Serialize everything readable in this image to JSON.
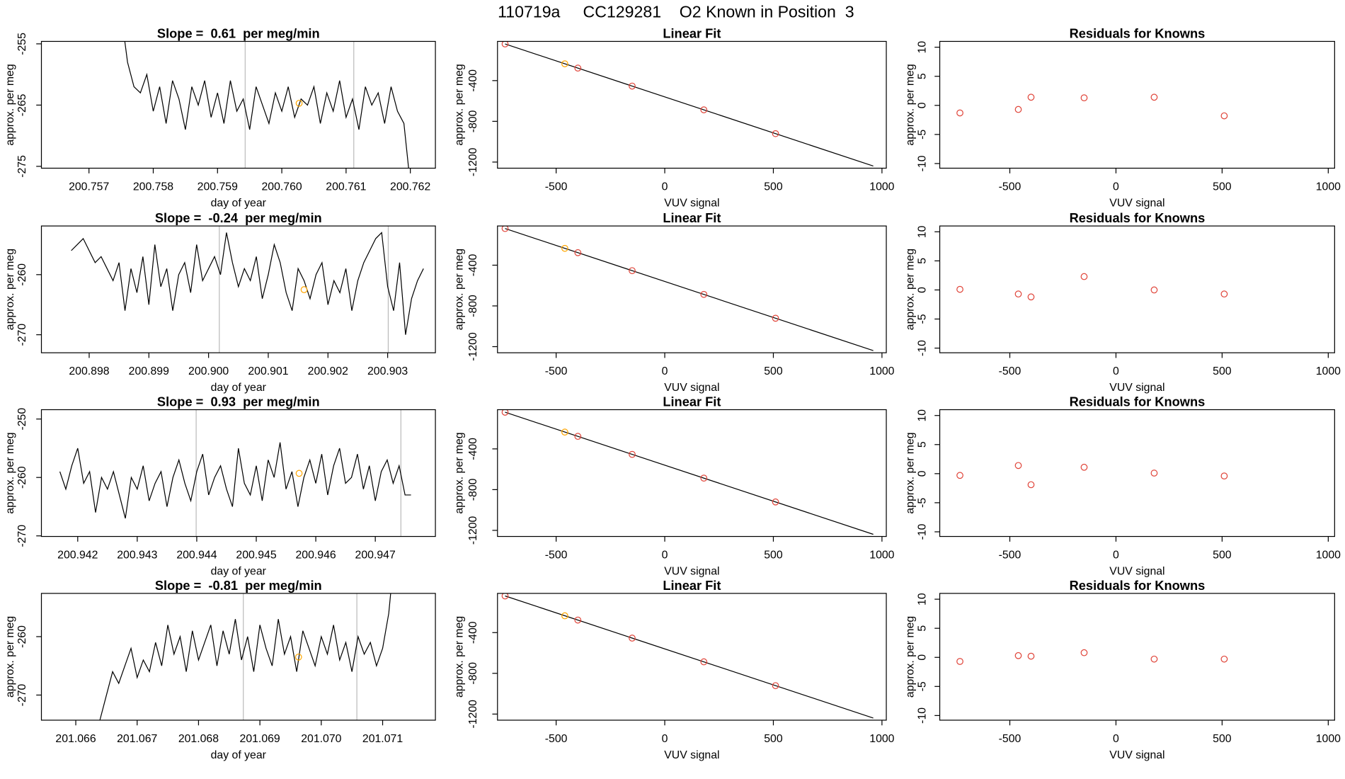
{
  "title": "110719a     CC129281    O2 Known in Position  3",
  "chart_data": [
    {
      "type": "line",
      "title": "Slope =  0.61  per meg/min",
      "xlabel": "day of year",
      "ylabel": "approx. per meg",
      "xlim": [
        200.75626,
        200.76239
      ],
      "xticks": [
        200.757,
        200.758,
        200.759,
        {
          "value": 200.76,
          "label": "200.760"
        },
        200.761,
        200.762
      ],
      "ylim": [
        -275.3,
        -254.6
      ],
      "yticks": [
        -255,
        -265,
        -275
      ],
      "series": [
        {
          "color": "#000000",
          "x": [
            200.7575,
            200.7576,
            200.7577,
            200.7578,
            200.7579,
            200.758,
            200.7581,
            200.7582,
            200.7583,
            200.7584,
            200.7585,
            200.7586,
            200.7587,
            200.7588,
            200.7589,
            200.759,
            200.7591,
            200.7592,
            200.7593,
            200.7594,
            200.7595,
            200.7596,
            200.7597,
            200.7598,
            200.7599,
            200.76,
            200.7601,
            200.7602,
            200.7603,
            200.7604,
            200.7605,
            200.7606,
            200.7607,
            200.7608,
            200.7609,
            200.761,
            200.7611,
            200.7612,
            200.7613,
            200.7614,
            200.7615,
            200.7616,
            200.7617,
            200.7618,
            200.7619,
            200.762
          ],
          "values": [
            -250,
            -258,
            -262,
            -263,
            -260,
            -266,
            -262,
            -268,
            -261,
            -264,
            -269,
            -262,
            -265,
            -261,
            -267,
            -263,
            -268,
            -261,
            -266,
            -264,
            -269,
            -262,
            -265,
            -268,
            -263,
            -266,
            -262,
            -267,
            -264,
            -265,
            -262,
            -268,
            -263,
            -266,
            -261,
            -267,
            -264,
            -269,
            -262,
            -265,
            -263,
            -268,
            -262,
            -266,
            -268,
            -278
          ]
        }
      ],
      "vlines": {
        "color": "#bbbbbb",
        "x": [
          200.75943,
          200.76112
        ]
      },
      "highlight": {
        "color": "#ffa500",
        "x": 200.76027,
        "y": -264.7
      }
    },
    {
      "type": "scatter",
      "title": "Linear Fit",
      "xlabel": "VUV signal",
      "ylabel": "approx. per meg",
      "xlim": [
        -770,
        1020
      ],
      "xticks": [
        -500,
        0,
        500,
        1000
      ],
      "ylim": [
        -1260,
        -15
      ],
      "yticks": [
        -400,
        -800,
        -1200
      ],
      "fit": {
        "color": "#000000",
        "x": [
          -735,
          960
        ],
        "values": [
          -40,
          -1239
        ]
      },
      "series": [
        {
          "x": [
            -735,
            -460,
            -400,
            -150,
            180,
            510
          ],
          "values": [
            -40,
            -235,
            -277,
            -454,
            -687,
            -921
          ],
          "colors": [
            "#e0453a",
            "#ffa500",
            "#e0453a",
            "#e0453a",
            "#e0453a",
            "#e0453a"
          ]
        }
      ]
    },
    {
      "type": "scatter",
      "title": "Residuals for Knowns",
      "xlabel": "VUV signal",
      "ylabel": "approx. per meg",
      "xlim": [
        -830,
        1030
      ],
      "xticks": [
        -500,
        0,
        500,
        1000
      ],
      "ylim": [
        -10.8,
        11
      ],
      "yticks": [
        -10,
        -5,
        0,
        5,
        10
      ],
      "series": [
        {
          "color": "#e0453a",
          "x": [
            -735,
            -460,
            -400,
            -150,
            180,
            510
          ],
          "values": [
            -1.3,
            -0.7,
            1.4,
            1.3,
            1.4,
            -1.8
          ]
        }
      ]
    },
    {
      "type": "line",
      "title": "Slope =  -0.24  per meg/min",
      "xlabel": "day of year",
      "ylabel": "approx. per meg",
      "xlim": [
        200.8972,
        200.9038
      ],
      "xticks": [
        200.898,
        200.899,
        {
          "value": 200.9,
          "label": "200.900"
        },
        200.901,
        200.902,
        200.903
      ],
      "ylim": [
        -273,
        -251.9
      ],
      "yticks": [
        -260,
        -270
      ],
      "series": [
        {
          "color": "#000000",
          "x": [
            200.8977,
            200.8978,
            200.8979,
            200.898,
            200.8981,
            200.8982,
            200.8983,
            200.8984,
            200.8985,
            200.8986,
            200.8987,
            200.8988,
            200.8989,
            200.899,
            200.8991,
            200.8992,
            200.8993,
            200.8994,
            200.8995,
            200.8996,
            200.8997,
            200.8998,
            200.8999,
            200.9,
            200.9001,
            200.9002,
            200.9003,
            200.9004,
            200.9005,
            200.9006,
            200.9007,
            200.9008,
            200.9009,
            200.901,
            200.9011,
            200.9012,
            200.9013,
            200.9014,
            200.9015,
            200.9016,
            200.9017,
            200.9018,
            200.9019,
            200.902,
            200.9021,
            200.9022,
            200.9023,
            200.9024,
            200.9025,
            200.9026,
            200.9027,
            200.9028,
            200.9029,
            200.903,
            200.9031,
            200.9032,
            200.9033,
            200.9034,
            200.9035,
            200.9036
          ],
          "values": [
            -256,
            -255,
            -254,
            -256,
            -258,
            -257,
            -259,
            -261,
            -258,
            -266,
            -259,
            -263,
            -257,
            -265,
            -255,
            -262,
            -259,
            -266,
            -260,
            -258,
            -263,
            -255,
            -261,
            -259,
            -257,
            -260,
            -253,
            -258,
            -262,
            -259,
            -261,
            -257,
            -264,
            -260,
            -255,
            -258,
            -263,
            -266,
            -259,
            -261,
            -264,
            -260,
            -258,
            -265,
            -261,
            -263,
            -259,
            -266,
            -261,
            -258,
            -256,
            -254,
            -253,
            -262,
            -266,
            -258,
            -270,
            -264,
            -261,
            -259
          ]
        }
      ],
      "vlines": {
        "color": "#bbbbbb",
        "x": [
          200.90018,
          200.90301
        ]
      },
      "highlight": {
        "color": "#ffa500",
        "x": 200.9016,
        "y": -262.5
      }
    },
    {
      "type": "scatter",
      "title": "Linear Fit",
      "xlabel": "VUV signal",
      "ylabel": "approx. per meg",
      "xlim": [
        -770,
        1020
      ],
      "xticks": [
        -500,
        0,
        500,
        1000
      ],
      "ylim": [
        -1260,
        -15
      ],
      "yticks": [
        -400,
        -800,
        -1200
      ],
      "fit": {
        "color": "#000000",
        "x": [
          -735,
          960
        ],
        "values": [
          -40,
          -1239
        ]
      },
      "series": [
        {
          "x": [
            -735,
            -460,
            -400,
            -150,
            180,
            510
          ],
          "values": [
            -40,
            -235,
            -277,
            -454,
            -687,
            -921
          ],
          "colors": [
            "#e0453a",
            "#ffa500",
            "#e0453a",
            "#e0453a",
            "#e0453a",
            "#e0453a"
          ]
        }
      ]
    },
    {
      "type": "scatter",
      "title": "Residuals for Knowns",
      "xlabel": "VUV signal",
      "ylabel": "approx. per meg",
      "xlim": [
        -830,
        1030
      ],
      "xticks": [
        -500,
        0,
        500,
        1000
      ],
      "ylim": [
        -10.8,
        11
      ],
      "yticks": [
        -10,
        -5,
        0,
        5,
        10
      ],
      "series": [
        {
          "color": "#e0453a",
          "x": [
            -735,
            -460,
            -400,
            -150,
            180,
            510
          ],
          "values": [
            0.1,
            -0.7,
            -1.2,
            2.3,
            0.0,
            -0.7
          ]
        }
      ]
    },
    {
      "type": "line",
      "title": "Slope =  0.93  per meg/min",
      "xlabel": "day of year",
      "ylabel": "approx. per meg",
      "xlim": [
        200.94139,
        200.94801
      ],
      "xticks": [
        200.942,
        200.943,
        200.944,
        200.945,
        200.946,
        200.947
      ],
      "ylim": [
        -270.1,
        -248.4
      ],
      "yticks": [
        -250,
        -260,
        -270
      ],
      "series": [
        {
          "color": "#000000",
          "x": [
            200.9417,
            200.9418,
            200.9419,
            200.942,
            200.9421,
            200.9422,
            200.9423,
            200.9424,
            200.9425,
            200.9426,
            200.9427,
            200.9428,
            200.9429,
            200.943,
            200.9431,
            200.9432,
            200.9433,
            200.9434,
            200.9435,
            200.9436,
            200.9437,
            200.9438,
            200.9439,
            200.944,
            200.9441,
            200.9442,
            200.9443,
            200.9444,
            200.9445,
            200.9446,
            200.9447,
            200.9448,
            200.9449,
            200.945,
            200.9451,
            200.9452,
            200.9453,
            200.9454,
            200.9455,
            200.9456,
            200.9457,
            200.9458,
            200.9459,
            200.946,
            200.9461,
            200.9462,
            200.9463,
            200.9464,
            200.9465,
            200.9466,
            200.9467,
            200.9468,
            200.9469,
            200.947,
            200.9471,
            200.9472,
            200.9473,
            200.9474,
            200.9475,
            200.9476
          ],
          "values": [
            -259,
            -262,
            -258,
            -255,
            -261,
            -259,
            -266,
            -260,
            -262,
            -259,
            -263,
            -267,
            -260,
            -262,
            -258,
            -264,
            -261,
            -259,
            -265,
            -260,
            -257,
            -261,
            -264,
            -259,
            -256,
            -263,
            -260,
            -258,
            -262,
            -265,
            -255,
            -261,
            -263,
            -258,
            -264,
            -257,
            -260,
            -254,
            -262,
            -259,
            -265,
            -260,
            -257,
            -261,
            -256,
            -263,
            -258,
            -255,
            -261,
            -260,
            -256,
            -262,
            -258,
            -264,
            -259,
            -257,
            -261,
            -258,
            -263,
            -263
          ]
        }
      ],
      "vlines": {
        "color": "#bbbbbb",
        "x": [
          200.94399,
          200.94743
        ]
      },
      "highlight": {
        "color": "#ffa500",
        "x": 200.94572,
        "y": -259.3
      }
    },
    {
      "type": "scatter",
      "title": "Linear Fit",
      "xlabel": "VUV signal",
      "ylabel": "approx. per meg",
      "xlim": [
        -770,
        1020
      ],
      "xticks": [
        -500,
        0,
        500,
        1000
      ],
      "ylim": [
        -1260,
        -15
      ],
      "yticks": [
        -400,
        -800,
        -1200
      ],
      "fit": {
        "color": "#000000",
        "x": [
          -735,
          960
        ],
        "values": [
          -40,
          -1239
        ]
      },
      "series": [
        {
          "x": [
            -735,
            -460,
            -400,
            -150,
            180,
            510
          ],
          "values": [
            -40,
            -235,
            -277,
            -454,
            -687,
            -921
          ],
          "colors": [
            "#e0453a",
            "#ffa500",
            "#e0453a",
            "#e0453a",
            "#e0453a",
            "#e0453a"
          ]
        }
      ]
    },
    {
      "type": "scatter",
      "title": "Residuals for Knowns",
      "xlabel": "VUV signal",
      "ylabel": "approx. per meg",
      "xlim": [
        -830,
        1030
      ],
      "xticks": [
        -500,
        0,
        500,
        1000
      ],
      "ylim": [
        -10.8,
        11
      ],
      "yticks": [
        -10,
        -5,
        0,
        5,
        10
      ],
      "series": [
        {
          "color": "#e0453a",
          "x": [
            -735,
            -460,
            -400,
            -150,
            180,
            510
          ],
          "values": [
            -0.3,
            1.4,
            -1.9,
            1.1,
            0.1,
            -0.4
          ]
        }
      ]
    },
    {
      "type": "line",
      "title": "Slope =  -0.81  per meg/min",
      "xlabel": "day of year",
      "ylabel": "approx. per meg",
      "xlim": [
        201.06544,
        201.07186
      ],
      "xticks": [
        201.066,
        201.067,
        201.068,
        201.069,
        {
          "value": 201.07,
          "label": "201.070"
        },
        201.071
      ],
      "ylim": [
        -274.3,
        -252.6
      ],
      "yticks": [
        -260,
        -270
      ],
      "series": [
        {
          "color": "#000000",
          "x": [
            201.0663,
            201.0664,
            201.0665,
            201.0666,
            201.0667,
            201.0668,
            201.0669,
            201.067,
            201.0671,
            201.0672,
            201.0673,
            201.0674,
            201.0675,
            201.0676,
            201.0677,
            201.0678,
            201.0679,
            201.068,
            201.0681,
            201.0682,
            201.0683,
            201.0684,
            201.0685,
            201.0686,
            201.0687,
            201.0688,
            201.0689,
            201.069,
            201.0691,
            201.0692,
            201.0693,
            201.0694,
            201.0695,
            201.0696,
            201.0697,
            201.0698,
            201.0699,
            201.07,
            201.0701,
            201.0702,
            201.0703,
            201.0704,
            201.0705,
            201.0706,
            201.0707,
            201.0708,
            201.0709,
            201.071,
            201.0711,
            201.0712
          ],
          "values": [
            -278,
            -274,
            -270,
            -266,
            -268,
            -265,
            -262,
            -267,
            -264,
            -266,
            -261,
            -265,
            -258,
            -263,
            -260,
            -266,
            -259,
            -264,
            -261,
            -258,
            -265,
            -259,
            -263,
            -257,
            -264,
            -260,
            -266,
            -258,
            -262,
            -265,
            -257,
            -263,
            -260,
            -266,
            -259,
            -262,
            -265,
            -260,
            -263,
            -258,
            -264,
            -261,
            -266,
            -260,
            -263,
            -261,
            -265,
            -262,
            -256,
            -245
          ]
        }
      ],
      "vlines": {
        "color": "#bbbbbb",
        "x": [
          201.06873,
          201.07058
        ]
      },
      "highlight": {
        "color": "#ffa500",
        "x": 201.06963,
        "y": -263.5
      }
    },
    {
      "type": "scatter",
      "title": "Linear Fit",
      "xlabel": "VUV signal",
      "ylabel": "approx. per meg",
      "xlim": [
        -770,
        1020
      ],
      "xticks": [
        -500,
        0,
        500,
        1000
      ],
      "ylim": [
        -1260,
        -15
      ],
      "yticks": [
        -400,
        -800,
        -1200
      ],
      "fit": {
        "color": "#000000",
        "x": [
          -735,
          960
        ],
        "values": [
          -40,
          -1239
        ]
      },
      "series": [
        {
          "x": [
            -735,
            -460,
            -400,
            -150,
            180,
            510
          ],
          "values": [
            -40,
            -235,
            -277,
            -454,
            -687,
            -921
          ],
          "colors": [
            "#e0453a",
            "#ffa500",
            "#e0453a",
            "#e0453a",
            "#e0453a",
            "#e0453a"
          ]
        }
      ]
    },
    {
      "type": "scatter",
      "title": "Residuals for Knowns",
      "xlabel": "VUV signal",
      "ylabel": "approx. per meg",
      "xlim": [
        -830,
        1030
      ],
      "xticks": [
        -500,
        0,
        500,
        1000
      ],
      "ylim": [
        -10.8,
        11
      ],
      "yticks": [
        -10,
        -5,
        0,
        5,
        10
      ],
      "series": [
        {
          "color": "#e0453a",
          "x": [
            -735,
            -460,
            -400,
            -150,
            180,
            510
          ],
          "values": [
            -0.7,
            0.3,
            0.2,
            0.8,
            -0.3,
            -0.3
          ]
        }
      ]
    }
  ]
}
